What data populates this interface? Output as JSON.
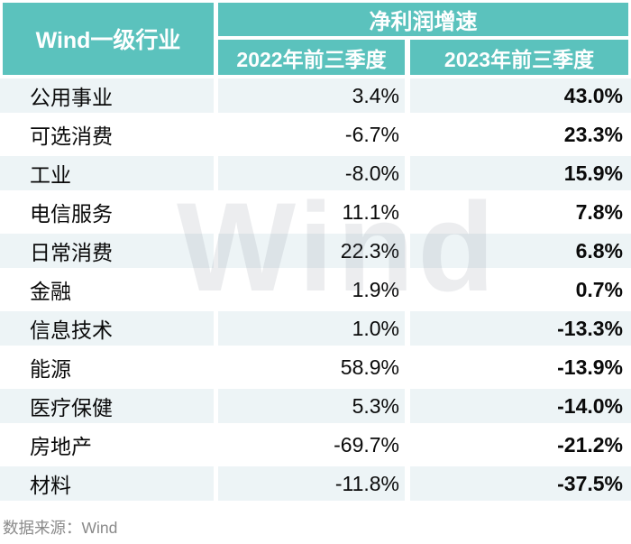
{
  "table": {
    "header": {
      "col1": "Wind一级行业",
      "group": "净利润增速",
      "sub_2022": "2022年前三季度",
      "sub_2023": "2023年前三季度"
    },
    "rows": [
      {
        "name": "公用事业",
        "y2022": "3.4%",
        "y2023": "43.0%"
      },
      {
        "name": "可选消费",
        "y2022": "-6.7%",
        "y2023": "23.3%"
      },
      {
        "name": "工业",
        "y2022": "-8.0%",
        "y2023": "15.9%"
      },
      {
        "name": "电信服务",
        "y2022": "11.1%",
        "y2023": "7.8%"
      },
      {
        "name": "日常消费",
        "y2022": "22.3%",
        "y2023": "6.8%"
      },
      {
        "name": "金融",
        "y2022": "1.9%",
        "y2023": "0.7%"
      },
      {
        "name": "信息技术",
        "y2022": "1.0%",
        "y2023": "-13.3%"
      },
      {
        "name": "能源",
        "y2022": "58.9%",
        "y2023": "-13.9%"
      },
      {
        "name": "医疗保健",
        "y2022": "5.3%",
        "y2023": "-14.0%"
      },
      {
        "name": "房地产",
        "y2022": "-69.7%",
        "y2023": "-21.2%"
      },
      {
        "name": "材料",
        "y2022": "-11.8%",
        "y2023": "-37.5%"
      }
    ]
  },
  "watermark_text": "Wind",
  "footer": {
    "source_note": "数据来源：Wind"
  },
  "colors": {
    "header_bg": "#5BC2BD",
    "header_text": "#FFFFFF",
    "row_alt_bg": "#EDF4F6",
    "row_bg": "#FFFFFF",
    "body_text": "#0A0A0A",
    "source_text": "#8A8A8A"
  },
  "chart_data": {
    "type": "table",
    "title": "净利润增速",
    "row_header_label": "Wind一级行业",
    "categories": [
      "公用事业",
      "可选消费",
      "工业",
      "电信服务",
      "日常消费",
      "金融",
      "信息技术",
      "能源",
      "医疗保健",
      "房地产",
      "材料"
    ],
    "series": [
      {
        "name": "2022年前三季度",
        "values": [
          3.4,
          -6.7,
          -8.0,
          11.1,
          22.3,
          1.9,
          1.0,
          58.9,
          5.3,
          -69.7,
          -11.8
        ]
      },
      {
        "name": "2023年前三季度",
        "values": [
          43.0,
          23.3,
          15.9,
          7.8,
          6.8,
          0.7,
          -13.3,
          -13.9,
          -14.0,
          -21.2,
          -37.5
        ]
      }
    ],
    "unit": "%",
    "source": "Wind"
  }
}
